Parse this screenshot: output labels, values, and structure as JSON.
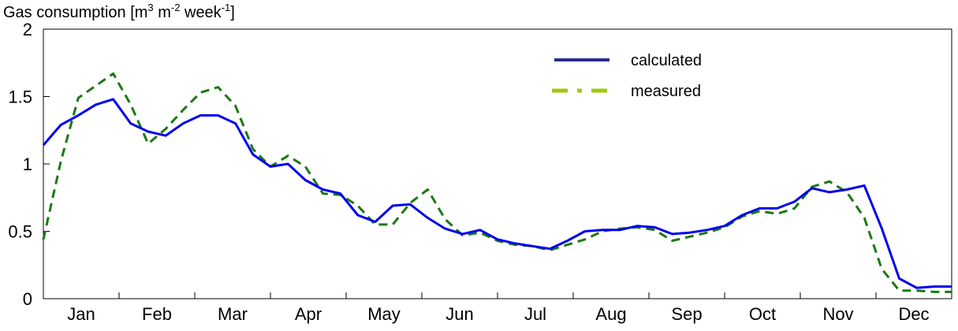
{
  "chart_data": {
    "type": "line",
    "title": "",
    "ylabel": {
      "base": "Gas consumption [m",
      "sup1": "3",
      "mid1": " m",
      "sup2": "-2",
      "mid2": " week",
      "sup3": "-1",
      "end": "]"
    },
    "xlabel": "",
    "ylim": [
      0,
      2
    ],
    "xlim": [
      0,
      52
    ],
    "yticks": [
      0,
      0.5,
      1,
      1.5,
      2
    ],
    "ytick_labels": [
      "0",
      "0.5",
      "1",
      "1.5",
      "2"
    ],
    "month_labels": [
      "Jan",
      "Feb",
      "Mar",
      "Apr",
      "May",
      "Jun",
      "Jul",
      "Aug",
      "Sep",
      "Oct",
      "Nov",
      "Dec"
    ],
    "grid": false,
    "legend_position": "top-right",
    "series": [
      {
        "name": "calculated",
        "color": "#0000ee",
        "style": "solid",
        "x": [
          0,
          1,
          2,
          3,
          4,
          5,
          6,
          7,
          8,
          9,
          10,
          11,
          12,
          13,
          14,
          15,
          16,
          17,
          18,
          19,
          20,
          21,
          22,
          23,
          24,
          25,
          26,
          27,
          28,
          29,
          30,
          31,
          32,
          33,
          34,
          35,
          36,
          37,
          38,
          39,
          40,
          41,
          42,
          43,
          44,
          45,
          46,
          47,
          48,
          49,
          50,
          51,
          52
        ],
        "values": [
          1.14,
          1.29,
          1.36,
          1.44,
          1.48,
          1.3,
          1.24,
          1.21,
          1.3,
          1.36,
          1.36,
          1.3,
          1.07,
          0.98,
          1.0,
          0.88,
          0.81,
          0.78,
          0.62,
          0.57,
          0.69,
          0.7,
          0.6,
          0.52,
          0.48,
          0.51,
          0.44,
          0.41,
          0.39,
          0.37,
          0.43,
          0.5,
          0.51,
          0.51,
          0.54,
          0.53,
          0.48,
          0.49,
          0.51,
          0.54,
          0.62,
          0.67,
          0.67,
          0.72,
          0.82,
          0.79,
          0.81,
          0.84,
          0.52,
          0.15,
          0.08,
          0.09,
          0.09
        ]
      },
      {
        "name": "measured",
        "color": "#1a7a12",
        "style": "dashed",
        "x": [
          0,
          1,
          2,
          3,
          4,
          5,
          6,
          7,
          8,
          9,
          10,
          11,
          12,
          13,
          14,
          15,
          16,
          17,
          18,
          19,
          20,
          21,
          22,
          23,
          24,
          25,
          26,
          27,
          28,
          29,
          30,
          31,
          32,
          33,
          34,
          35,
          36,
          37,
          38,
          39,
          40,
          41,
          42,
          43,
          44,
          45,
          46,
          47,
          48,
          49,
          50,
          51,
          52
        ],
        "values": [
          0.44,
          1.02,
          1.49,
          1.58,
          1.67,
          1.44,
          1.15,
          1.26,
          1.4,
          1.53,
          1.57,
          1.43,
          1.11,
          0.98,
          1.06,
          0.98,
          0.78,
          0.77,
          0.69,
          0.55,
          0.55,
          0.71,
          0.81,
          0.59,
          0.47,
          0.49,
          0.43,
          0.4,
          0.39,
          0.36,
          0.4,
          0.44,
          0.5,
          0.52,
          0.53,
          0.51,
          0.43,
          0.46,
          0.49,
          0.53,
          0.61,
          0.65,
          0.63,
          0.67,
          0.83,
          0.87,
          0.79,
          0.6,
          0.22,
          0.06,
          0.06,
          0.05,
          0.05
        ]
      }
    ],
    "legend": [
      {
        "label": "calculated",
        "color": "#2b2b8f",
        "style": "solid"
      },
      {
        "label": "measured",
        "color": "#a0c814",
        "style": "dashdot"
      }
    ]
  }
}
